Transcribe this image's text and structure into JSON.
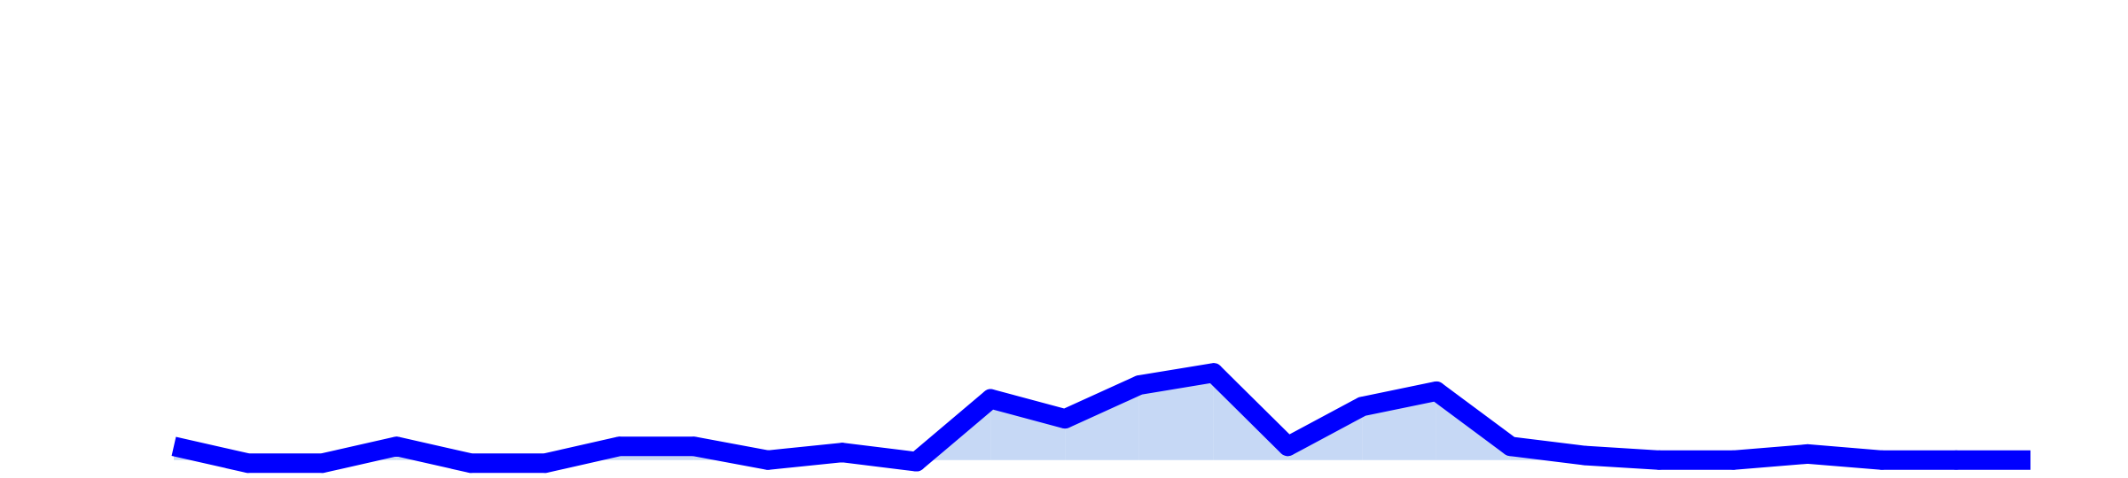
{
  "chart_data": {
    "type": "line",
    "x": [
      0,
      1,
      2,
      3,
      4,
      5,
      6,
      7,
      8,
      9,
      10,
      11,
      12,
      13,
      14,
      15,
      16,
      17,
      18,
      19,
      20,
      21,
      22,
      23,
      24,
      25
    ],
    "series": [
      {
        "values": [
          1.2,
          0.1,
          0.1,
          1.2,
          0.1,
          0.1,
          1.2,
          1.2,
          0.3,
          0.8,
          0.2,
          4.3,
          3.0,
          5.2,
          6.0,
          1.2,
          3.8,
          4.8,
          1.2,
          0.6,
          0.3,
          0.3,
          0.7,
          0.3,
          0.3,
          0.3
        ]
      }
    ],
    "baseline": 0.3,
    "ylim": [
      0,
      30
    ],
    "grid": false,
    "legend": "none",
    "colors": {
      "line": "#0000ff",
      "fill": "#c6d8f5"
    }
  }
}
